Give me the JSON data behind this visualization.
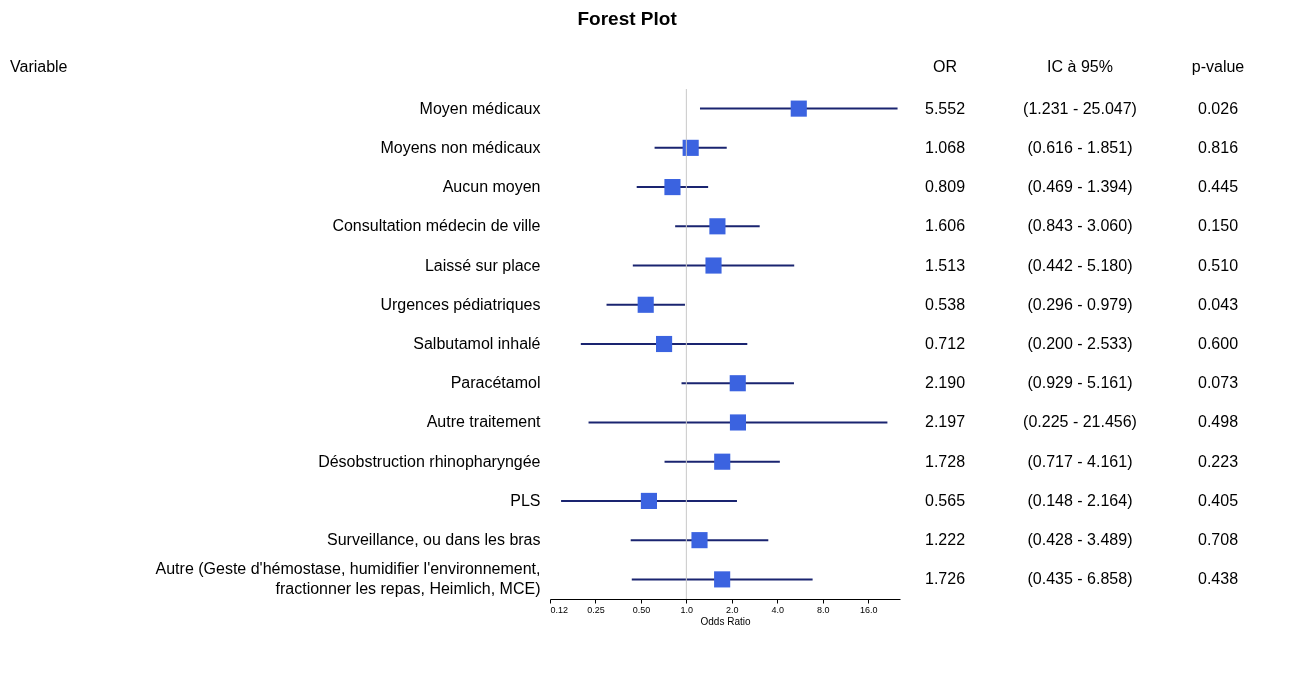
{
  "chart_data": {
    "type": "scatter",
    "orientation": "horizontal",
    "title": "Forest Plot",
    "xlabel": "Odds Ratio",
    "categories": [
      "Moyen médicaux",
      "Moyens non médicaux",
      "Aucun moyen",
      "Consultation médecin de ville",
      "Laissé sur place",
      "Urgences pédiatriques",
      "Salbutamol inhalé",
      "Paracétamol",
      "Autre traitement",
      "Désobstruction rhinopharyngée",
      "PLS",
      "Surveillance, ou dans les bras",
      "Autre (Geste d'hémostase,  humidifier l'environnement, fractionner les repas, Heimlich, MCE)"
    ],
    "series": [
      {
        "color": "#3b63e0",
        "values": [
          5.552,
          1.068,
          0.809,
          1.606,
          1.513,
          0.538,
          0.712,
          2.19,
          2.197,
          1.728,
          0.565,
          1.222,
          1.726
        ],
        "errors": [
          [
            1.231,
            25.047
          ],
          [
            0.616,
            1.851
          ],
          [
            0.469,
            1.394
          ],
          [
            0.843,
            3.06
          ],
          [
            0.442,
            5.18
          ],
          [
            0.296,
            0.979
          ],
          [
            0.2,
            2.533
          ],
          [
            0.929,
            5.161
          ],
          [
            0.225,
            21.456
          ],
          [
            0.717,
            4.161
          ],
          [
            0.148,
            2.164
          ],
          [
            0.428,
            3.489
          ],
          [
            0.435,
            6.858
          ]
        ],
        "value_labels": [
          "5.552",
          "1.068",
          "0.809",
          "1.606",
          "1.513",
          "0.538",
          "0.712",
          "2.190",
          "2.197",
          "1.728",
          "0.565",
          "1.222",
          "1.726"
        ]
      }
    ],
    "log": "x",
    "marker": "square",
    "grid": false,
    "legend": false,
    "xlim": [
      0.125,
      26
    ],
    "xticks": [
      {
        "value": 0.125,
        "label": "0.12"
      },
      {
        "value": 0.25,
        "label": "0.25"
      },
      {
        "value": 0.5,
        "label": "0.50"
      },
      {
        "value": 1,
        "label": "1.0"
      },
      {
        "value": 2,
        "label": "2.0"
      },
      {
        "value": 4,
        "label": "4.0"
      },
      {
        "value": 8,
        "label": "8.0"
      },
      {
        "value": 16,
        "label": "16.0"
      }
    ],
    "ref_lines": [
      {
        "axis": "x",
        "value": 1,
        "color": "#c8c8c8"
      }
    ],
    "annotations": [
      "Variable",
      "OR",
      "IC à 95%",
      "p-value",
      "(1.231 - 25.047)",
      "(0.616 - 1.851)",
      "(0.469 - 1.394)",
      "(0.843 - 3.060)",
      "(0.442 - 5.180)",
      "(0.296 - 0.979)",
      "(0.200 - 2.533)",
      "(0.929 - 5.161)",
      "(0.225 - 21.456)",
      "(0.717 - 4.161)",
      "(0.148 - 2.164)",
      "(0.428 - 3.489)",
      "(0.435 - 6.858)",
      "0.026",
      "0.816",
      "0.445",
      "0.150",
      "0.510",
      "0.043",
      "0.600",
      "0.073",
      "0.498",
      "0.223",
      "0.405",
      "0.708",
      "0.438"
    ]
  }
}
